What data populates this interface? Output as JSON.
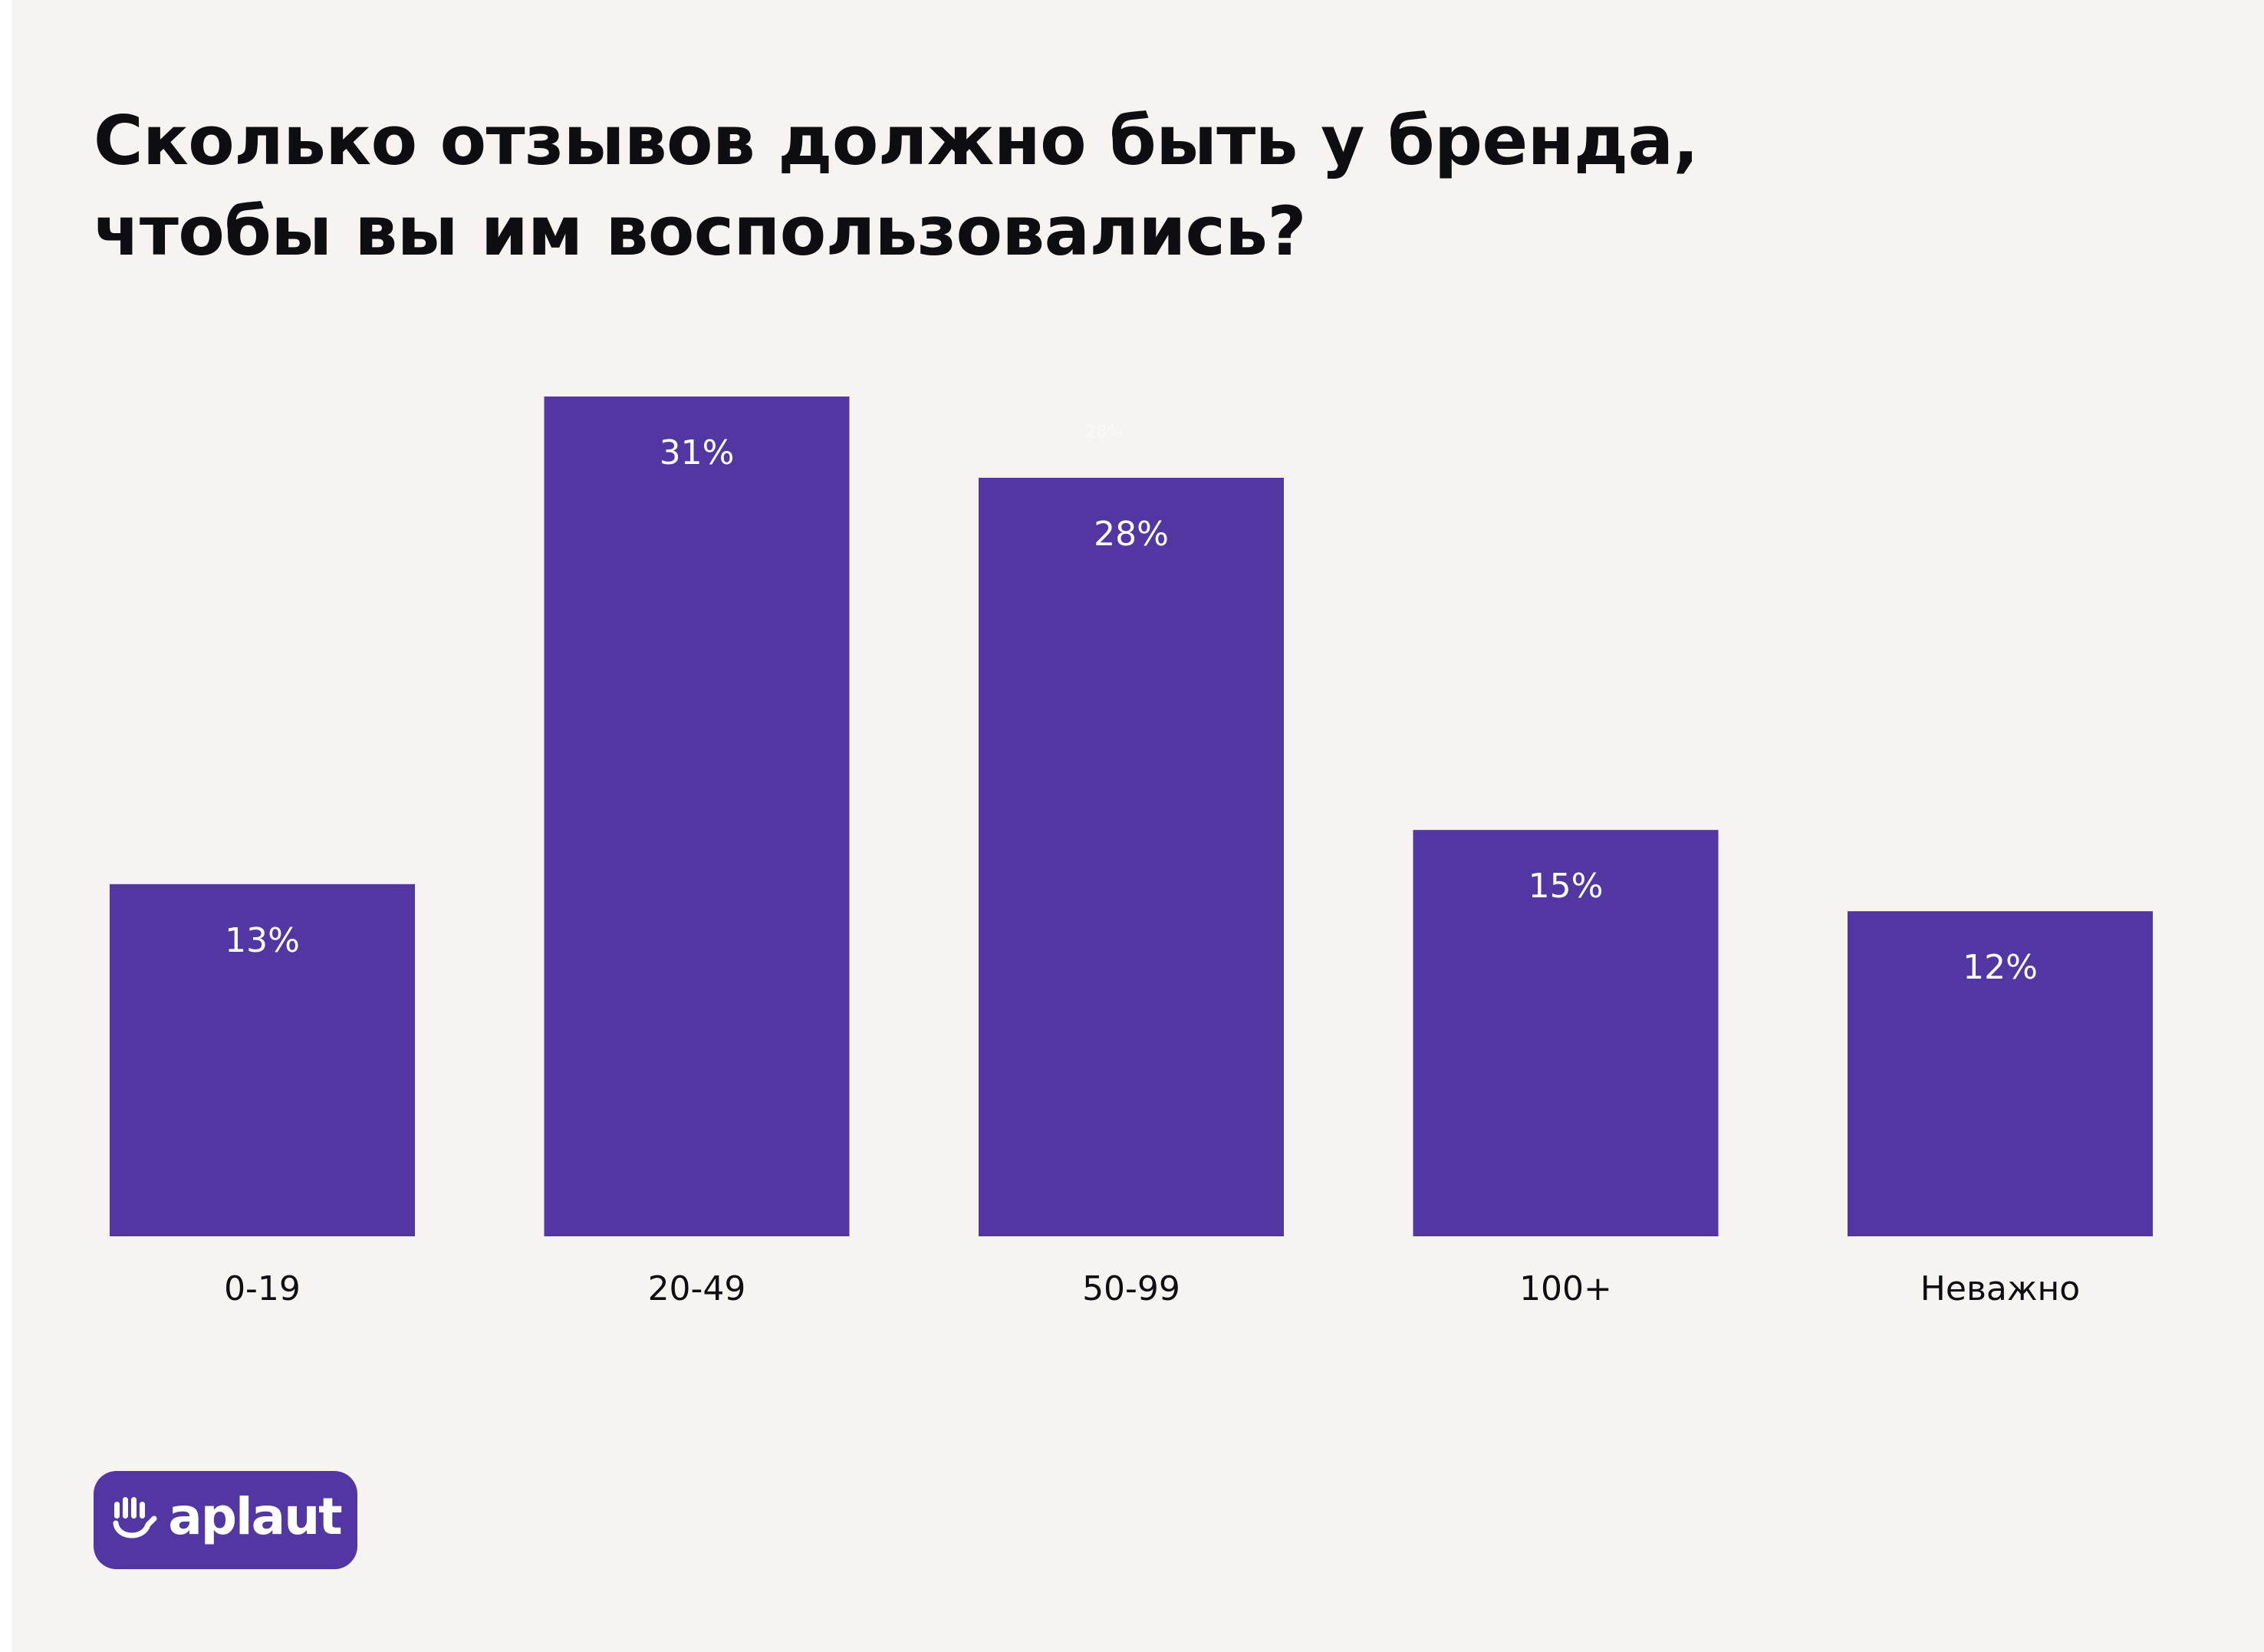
{
  "chart_data": {
    "type": "bar",
    "title_lines": [
      "Сколько отзывов должно быть у бренда,",
      "чтобы вы им воспользовались?"
    ],
    "categories": [
      "0-19",
      "20-49",
      "50-99",
      "100+",
      "Неважно"
    ],
    "values": [
      13,
      31,
      28,
      15,
      12
    ],
    "value_labels": [
      "13%",
      "31%",
      "28%",
      "15%",
      "12%"
    ],
    "ghost_label": "28%",
    "ylim": [
      0,
      31
    ],
    "grid": false,
    "bar_color": "#5236a2"
  },
  "brand": {
    "name": "aplaut",
    "icon": "hand-smile-icon",
    "color": "#5236a2"
  },
  "colors": {
    "background": "#f6f3f0",
    "text": "#0d0d12",
    "label_on_bar": "#ffffff"
  }
}
